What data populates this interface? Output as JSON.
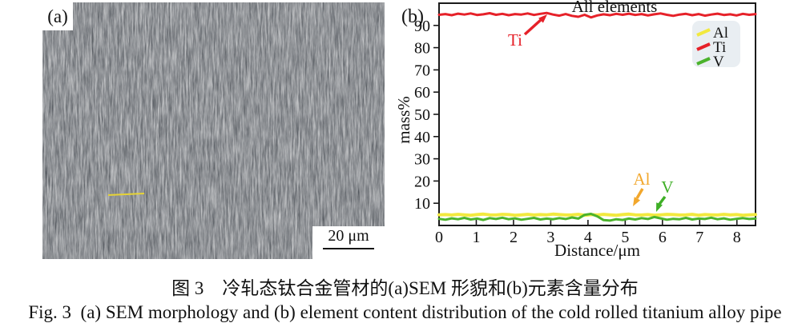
{
  "panel_a": {
    "label": "(a)",
    "scale_bar_label": "20 μm"
  },
  "panel_b": {
    "label": "(b)"
  },
  "chart_data": {
    "type": "line",
    "title": "All elements",
    "xlabel": "Distance/μm",
    "ylabel": "mass%",
    "xlim": [
      0,
      8.5
    ],
    "ylim": [
      0,
      100
    ],
    "xticks": [
      0,
      1,
      2,
      3,
      4,
      5,
      6,
      7,
      8
    ],
    "yticks": [
      10,
      20,
      30,
      40,
      50,
      60,
      70,
      80,
      90
    ],
    "grid": false,
    "legend_position": "top-right",
    "series": [
      {
        "name": "Al",
        "color": "#f2e93f",
        "values": [
          4.8,
          4.9,
          4.7,
          5.0,
          4.8,
          4.6,
          4.9,
          5.1,
          4.8,
          4.7,
          5.0,
          4.9,
          4.6,
          4.8,
          5.0,
          4.7,
          4.9,
          4.8,
          5.1,
          4.9,
          4.7,
          4.8,
          5.0,
          4.6,
          4.9,
          4.7,
          5.0,
          4.8,
          4.6,
          4.9,
          5.1,
          4.8,
          4.7,
          4.9,
          4.6,
          4.8,
          5.0,
          4.9,
          4.7,
          4.8,
          5.0,
          4.6,
          4.9,
          4.8,
          4.7,
          5.0,
          4.8,
          4.9,
          4.6,
          4.8,
          4.9
        ]
      },
      {
        "name": "Ti",
        "color": "#e62129",
        "values": [
          94.8,
          95.1,
          94.6,
          95.3,
          94.9,
          95.4,
          94.7,
          95.0,
          95.5,
          94.8,
          95.2,
          94.6,
          95.1,
          94.9,
          95.4,
          94.7,
          95.2,
          95.6,
          94.9,
          94.4,
          95.1,
          94.3,
          93.9,
          94.8,
          93.6,
          94.5,
          95.0,
          94.6,
          95.2,
          94.8,
          95.3,
          94.7,
          95.1,
          94.5,
          95.0,
          95.4,
          94.8,
          94.3,
          94.9,
          95.2,
          94.6,
          95.1,
          94.4,
          94.9,
          95.3,
          94.7,
          95.0,
          94.5,
          95.2,
          94.8,
          95.1
        ]
      },
      {
        "name": "V",
        "color": "#4bb32c",
        "values": [
          3.0,
          2.6,
          3.2,
          2.8,
          3.4,
          2.7,
          3.1,
          2.5,
          3.3,
          2.9,
          3.5,
          2.8,
          3.2,
          2.6,
          3.0,
          3.4,
          2.7,
          3.1,
          2.8,
          3.3,
          2.9,
          3.6,
          3.1,
          4.8,
          5.2,
          4.1,
          2.4,
          2.2,
          2.8,
          2.5,
          3.1,
          2.7,
          3.3,
          2.9,
          3.8,
          3.2,
          2.6,
          3.0,
          2.8,
          3.4,
          2.7,
          3.1,
          2.9,
          3.5,
          2.8,
          3.2,
          2.6,
          3.0,
          3.3,
          2.9,
          3.1
        ]
      }
    ],
    "annotations": [
      {
        "label": "Ti",
        "color": "#e62129"
      },
      {
        "label": "Al",
        "color": "#f2a72c"
      },
      {
        "label": "V",
        "color": "#3faf27"
      }
    ]
  },
  "captions": {
    "zh": "图 3 冷轧态钛合金管材的(a)SEM 形貌和(b)元素含量分布",
    "en": "Fig. 3 (a) SEM morphology and (b) element content distribution of the cold rolled titanium alloy pipe"
  }
}
